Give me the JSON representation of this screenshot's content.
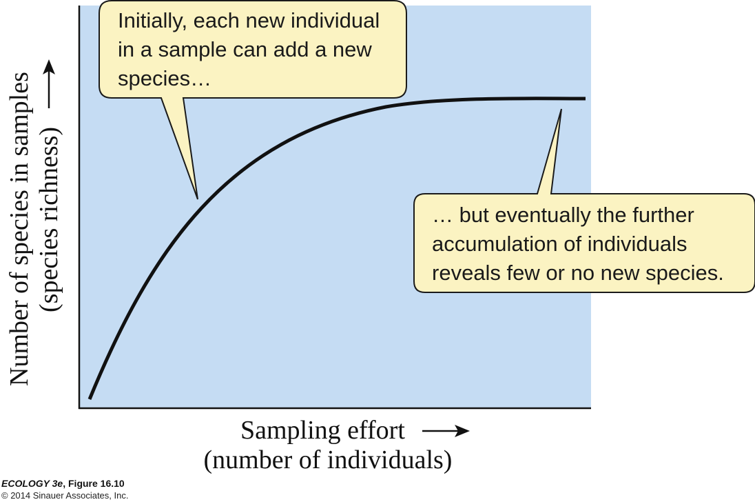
{
  "chart_data": {
    "type": "line",
    "title": "",
    "xlabel": [
      "Sampling effort",
      "(number of individuals)"
    ],
    "ylabel": [
      "Number of species in samples",
      "(species richness)"
    ],
    "x_ticks": [],
    "y_ticks": [],
    "grid": false,
    "legend": "none",
    "curve_description": "species accumulation curve, rising steeply then leveling off to a plateau",
    "annotations": [
      {
        "id": "early",
        "lines": [
          "Initially, each new individual",
          "in a sample can add a new",
          "species…"
        ]
      },
      {
        "id": "late",
        "lines": [
          "… but eventually the further",
          "accumulation of individuals",
          "reveals few or no new species."
        ]
      }
    ]
  },
  "colors": {
    "plot_background": "#c5dcf3",
    "callout_fill": "#fbf3c2",
    "callout_stroke": "#1a1a1a",
    "curve": "#111111",
    "axis": "#111111"
  },
  "credit": {
    "book": "ECOLOGY 3e",
    "figure": ", Figure 16.10",
    "copyright": "© 2014 Sinauer Associates, Inc."
  }
}
